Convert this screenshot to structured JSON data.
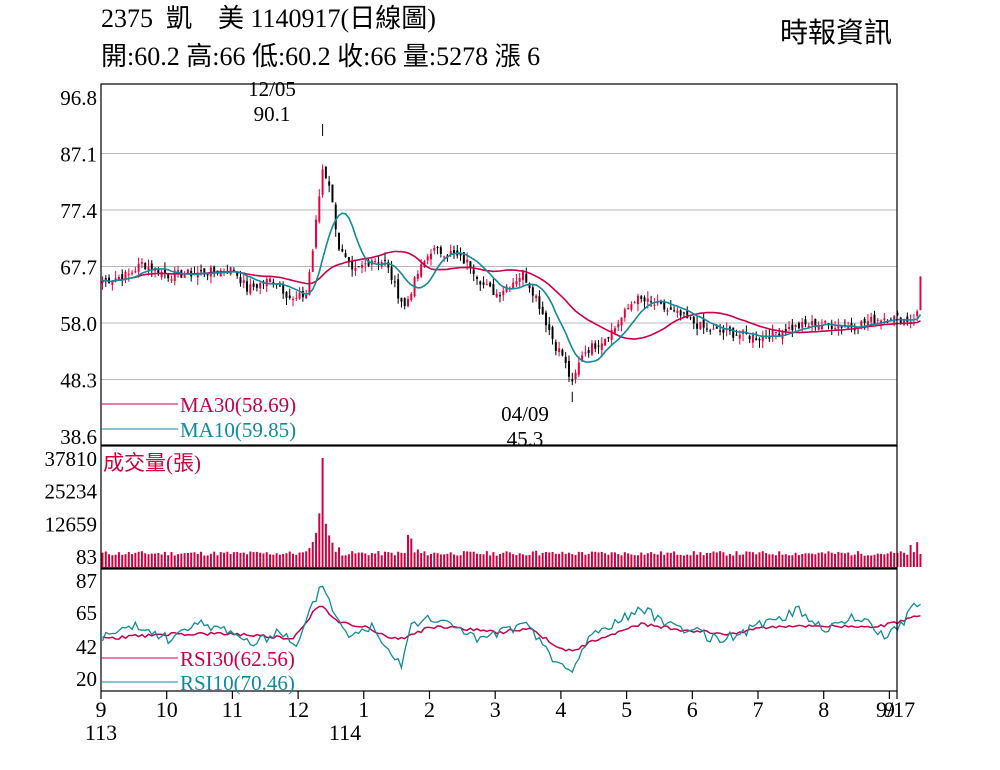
{
  "header": {
    "title_line": "2375  凱    美 1140917(日線圖)",
    "quote_line": "開:60.2 高:66 低:60.2 收:66 量:5278 漲 6",
    "source": "時報資訊"
  },
  "colors": {
    "up": "#e8003d",
    "down": "#000000",
    "ma30": "#c8004e",
    "ma10": "#0f8a9e",
    "volume": "#d0003e",
    "grid": "#b8b8b8"
  },
  "chart_data": [
    {
      "type": "candlestick",
      "panel": "price",
      "ylim": [
        38.6,
        96.8
      ],
      "y_ticks": [
        "96.8",
        "87.1",
        "77.4",
        "67.7",
        "58.0",
        "48.3",
        "38.6"
      ],
      "x_months": [
        "9",
        "10",
        "11",
        "12",
        "1",
        "2",
        "3",
        "4",
        "5",
        "6",
        "7",
        "8",
        "9",
        "9/17"
      ],
      "x_years": [
        "113",
        "114"
      ],
      "last_bar": {
        "date": "1140917",
        "open": 60.2,
        "high": 66,
        "low": 60.2,
        "close": 66
      },
      "annotations": [
        {
          "date": "12/05",
          "value": "90.1",
          "label": "high"
        },
        {
          "date": "04/09",
          "value": "45.3",
          "label": "low"
        }
      ],
      "legend": [
        {
          "name": "MA30",
          "value": "58.69",
          "color": "#c8004e"
        },
        {
          "name": "MA10",
          "value": "59.85",
          "color": "#0f8a9e"
        }
      ],
      "anchors": [
        {
          "m": 0.0,
          "v": 65.2
        },
        {
          "m": 0.4,
          "v": 66.3
        },
        {
          "m": 0.6,
          "v": 68.2
        },
        {
          "m": 1.0,
          "v": 66.2
        },
        {
          "m": 1.6,
          "v": 66.7
        },
        {
          "m": 2.0,
          "v": 67.2
        },
        {
          "m": 2.2,
          "v": 63.8
        },
        {
          "m": 2.6,
          "v": 65.6
        },
        {
          "m": 2.9,
          "v": 61.8
        },
        {
          "m": 3.1,
          "v": 63.0
        },
        {
          "m": 3.2,
          "v": 70.5
        },
        {
          "m": 3.35,
          "v": 84.5
        },
        {
          "m": 3.45,
          "v": 82.0
        },
        {
          "m": 3.6,
          "v": 71.0
        },
        {
          "m": 3.8,
          "v": 66.5
        },
        {
          "m": 4.1,
          "v": 69.0
        },
        {
          "m": 4.3,
          "v": 68.5
        },
        {
          "m": 4.5,
          "v": 63.0
        },
        {
          "m": 4.6,
          "v": 60.8
        },
        {
          "m": 4.8,
          "v": 66.5
        },
        {
          "m": 5.0,
          "v": 70.5
        },
        {
          "m": 5.3,
          "v": 70.0
        },
        {
          "m": 5.6,
          "v": 68.0
        },
        {
          "m": 5.8,
          "v": 64.5
        },
        {
          "m": 6.0,
          "v": 63.0
        },
        {
          "m": 6.4,
          "v": 66.5
        },
        {
          "m": 6.6,
          "v": 62.5
        },
        {
          "m": 6.9,
          "v": 54.0
        },
        {
          "m": 7.0,
          "v": 52.5
        },
        {
          "m": 7.15,
          "v": 47.3
        },
        {
          "m": 7.3,
          "v": 52.8
        },
        {
          "m": 7.6,
          "v": 55.0
        },
        {
          "m": 7.8,
          "v": 57.2
        },
        {
          "m": 8.1,
          "v": 62.2
        },
        {
          "m": 8.4,
          "v": 61.2
        },
        {
          "m": 8.8,
          "v": 59.2
        },
        {
          "m": 9.2,
          "v": 56.8
        },
        {
          "m": 9.6,
          "v": 56.2
        },
        {
          "m": 10.0,
          "v": 55.5
        },
        {
          "m": 10.4,
          "v": 57.0
        },
        {
          "m": 10.8,
          "v": 57.8
        },
        {
          "m": 11.4,
          "v": 57.5
        },
        {
          "m": 11.9,
          "v": 59.0
        },
        {
          "m": 12.3,
          "v": 58.5
        },
        {
          "m": 12.45,
          "v": 60.2
        }
      ]
    },
    {
      "type": "bar",
      "panel": "volume",
      "name": "成交量(張)",
      "y_ticks": [
        "37810",
        "25234",
        "12659",
        "83"
      ],
      "ylim": [
        83,
        37810
      ],
      "spikes": [
        {
          "m": 3.15,
          "v": 3200
        },
        {
          "m": 3.2,
          "v": 5500
        },
        {
          "m": 3.25,
          "v": 9000
        },
        {
          "m": 3.3,
          "v": 16500
        },
        {
          "m": 3.35,
          "v": 37810
        },
        {
          "m": 3.4,
          "v": 12500
        },
        {
          "m": 3.45,
          "v": 8000
        },
        {
          "m": 3.5,
          "v": 5200
        },
        {
          "m": 3.6,
          "v": 3400
        },
        {
          "m": 4.65,
          "v": 8200
        },
        {
          "m": 4.7,
          "v": 6800
        },
        {
          "m": 4.8,
          "v": 2600
        },
        {
          "m": 6.6,
          "v": 2100
        },
        {
          "m": 7.0,
          "v": 1700
        },
        {
          "m": 7.3,
          "v": 1600
        },
        {
          "m": 12.3,
          "v": 4300
        },
        {
          "m": 12.4,
          "v": 5400
        },
        {
          "m": 12.48,
          "v": 5278
        }
      ]
    },
    {
      "type": "line",
      "panel": "rsi",
      "ylim": [
        20,
        87
      ],
      "y_ticks": [
        "87",
        "65",
        "42",
        "20"
      ],
      "legend": [
        {
          "name": "RSI30",
          "value": "62.56",
          "color": "#c8004e"
        },
        {
          "name": "RSI10",
          "value": "70.46",
          "color": "#0f8a9e"
        }
      ],
      "rsi10_anchors": [
        {
          "m": 0,
          "v": 48
        },
        {
          "m": 0.5,
          "v": 55
        },
        {
          "m": 1.0,
          "v": 47
        },
        {
          "m": 1.5,
          "v": 57
        },
        {
          "m": 2.0,
          "v": 52
        },
        {
          "m": 2.3,
          "v": 42
        },
        {
          "m": 2.7,
          "v": 53
        },
        {
          "m": 2.95,
          "v": 40
        },
        {
          "m": 3.2,
          "v": 70
        },
        {
          "m": 3.35,
          "v": 85
        },
        {
          "m": 3.55,
          "v": 62
        },
        {
          "m": 3.8,
          "v": 48
        },
        {
          "m": 4.1,
          "v": 56
        },
        {
          "m": 4.3,
          "v": 44
        },
        {
          "m": 4.55,
          "v": 30
        },
        {
          "m": 4.7,
          "v": 58
        },
        {
          "m": 5.0,
          "v": 60
        },
        {
          "m": 5.4,
          "v": 56
        },
        {
          "m": 5.7,
          "v": 46
        },
        {
          "m": 6.0,
          "v": 50
        },
        {
          "m": 6.4,
          "v": 57
        },
        {
          "m": 6.7,
          "v": 44
        },
        {
          "m": 6.9,
          "v": 30
        },
        {
          "m": 7.15,
          "v": 24
        },
        {
          "m": 7.4,
          "v": 48
        },
        {
          "m": 7.8,
          "v": 58
        },
        {
          "m": 8.2,
          "v": 67
        },
        {
          "m": 8.6,
          "v": 58
        },
        {
          "m": 9.0,
          "v": 52
        },
        {
          "m": 9.4,
          "v": 46
        },
        {
          "m": 9.8,
          "v": 52
        },
        {
          "m": 10.2,
          "v": 60
        },
        {
          "m": 10.6,
          "v": 66
        },
        {
          "m": 11.0,
          "v": 54
        },
        {
          "m": 11.5,
          "v": 62
        },
        {
          "m": 11.9,
          "v": 49
        },
        {
          "m": 12.2,
          "v": 58
        },
        {
          "m": 12.35,
          "v": 74
        },
        {
          "m": 12.45,
          "v": 70.46
        }
      ],
      "rsi30_anchors": [
        {
          "m": 0,
          "v": 47
        },
        {
          "m": 1.0,
          "v": 50
        },
        {
          "m": 2.0,
          "v": 50
        },
        {
          "m": 2.9,
          "v": 47
        },
        {
          "m": 3.3,
          "v": 70
        },
        {
          "m": 3.6,
          "v": 58
        },
        {
          "m": 4.0,
          "v": 55
        },
        {
          "m": 4.5,
          "v": 46
        },
        {
          "m": 5.0,
          "v": 55
        },
        {
          "m": 5.5,
          "v": 54
        },
        {
          "m": 6.0,
          "v": 51
        },
        {
          "m": 6.5,
          "v": 54
        },
        {
          "m": 6.9,
          "v": 42
        },
        {
          "m": 7.15,
          "v": 38
        },
        {
          "m": 7.6,
          "v": 48
        },
        {
          "m": 8.2,
          "v": 57
        },
        {
          "m": 8.8,
          "v": 53
        },
        {
          "m": 9.5,
          "v": 50
        },
        {
          "m": 10.0,
          "v": 54
        },
        {
          "m": 10.6,
          "v": 56
        },
        {
          "m": 11.2,
          "v": 55
        },
        {
          "m": 11.9,
          "v": 56
        },
        {
          "m": 12.45,
          "v": 62.56
        }
      ]
    }
  ]
}
